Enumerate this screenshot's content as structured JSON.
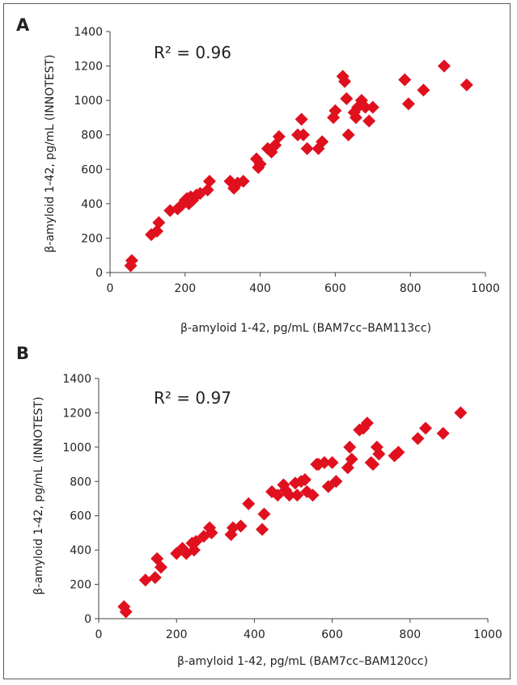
{
  "chart_data": [
    {
      "type": "scatter",
      "panel_label": "A",
      "annotation": "R² = 0.96",
      "xlabel": "β-amyloid 1-42, pg/mL (BAM7cc–BAM113cc)",
      "ylabel": "β-amyloid 1-42, pg/mL (INNOTEST)",
      "xlim": [
        0,
        1000
      ],
      "ylim": [
        0,
        1400
      ],
      "xticks": [
        "0",
        "200",
        "400",
        "600",
        "800",
        "1000"
      ],
      "yticks": [
        "0",
        "200",
        "400",
        "600",
        "800",
        "1000",
        "1200",
        "1400"
      ],
      "grid": false,
      "marker": "diamond",
      "color": "#e0101e",
      "series": [
        {
          "x": [
            55,
            58,
            110,
            125,
            130,
            160,
            180,
            190,
            200,
            205,
            210,
            215,
            220,
            230,
            240,
            260,
            265,
            320,
            330,
            340,
            355,
            390,
            395,
            400,
            420,
            430,
            440,
            450,
            500,
            510,
            515,
            525,
            555,
            565,
            595,
            600,
            620,
            625,
            630,
            635,
            650,
            655,
            660,
            670,
            680,
            690,
            700,
            785,
            795,
            835,
            890,
            950
          ],
          "y": [
            40,
            70,
            220,
            240,
            290,
            360,
            370,
            390,
            420,
            430,
            400,
            440,
            420,
            450,
            460,
            480,
            530,
            530,
            490,
            520,
            530,
            660,
            610,
            630,
            720,
            700,
            740,
            790,
            800,
            890,
            800,
            720,
            720,
            760,
            900,
            940,
            1140,
            1110,
            1010,
            800,
            930,
            900,
            960,
            1000,
            960,
            880,
            960,
            1120,
            980,
            1060,
            1200,
            1090
          ]
        }
      ]
    },
    {
      "type": "scatter",
      "panel_label": "B",
      "annotation": "R² = 0.97",
      "xlabel": "β-amyloid 1-42, pg/mL (BAM7cc–BAM120cc)",
      "ylabel": "β-amyloid 1-42, pg/mL (INNOTEST)",
      "xlim": [
        0,
        1000
      ],
      "ylim": [
        0,
        1400
      ],
      "xticks": [
        "0",
        "200",
        "400",
        "600",
        "800",
        "1000"
      ],
      "yticks": [
        "0",
        "200",
        "400",
        "600",
        "800",
        "1000",
        "1200",
        "1400"
      ],
      "grid": false,
      "marker": "diamond",
      "color": "#e0101e",
      "series": [
        {
          "x": [
            65,
            70,
            120,
            145,
            150,
            160,
            200,
            215,
            225,
            240,
            245,
            250,
            270,
            285,
            290,
            340,
            345,
            365,
            385,
            420,
            425,
            445,
            460,
            475,
            480,
            490,
            505,
            510,
            520,
            530,
            535,
            550,
            560,
            565,
            580,
            590,
            600,
            610,
            640,
            645,
            650,
            670,
            680,
            690,
            700,
            705,
            715,
            720,
            760,
            770,
            820,
            840,
            885,
            930
          ],
          "y": [
            70,
            40,
            225,
            240,
            350,
            300,
            380,
            410,
            380,
            440,
            400,
            450,
            480,
            530,
            500,
            490,
            530,
            540,
            670,
            520,
            610,
            740,
            720,
            780,
            750,
            720,
            790,
            720,
            800,
            810,
            740,
            720,
            900,
            900,
            910,
            770,
            910,
            800,
            880,
            1000,
            930,
            1100,
            1110,
            1140,
            910,
            900,
            1000,
            960,
            950,
            970,
            1050,
            1110,
            1080,
            1200
          ]
        }
      ]
    }
  ]
}
